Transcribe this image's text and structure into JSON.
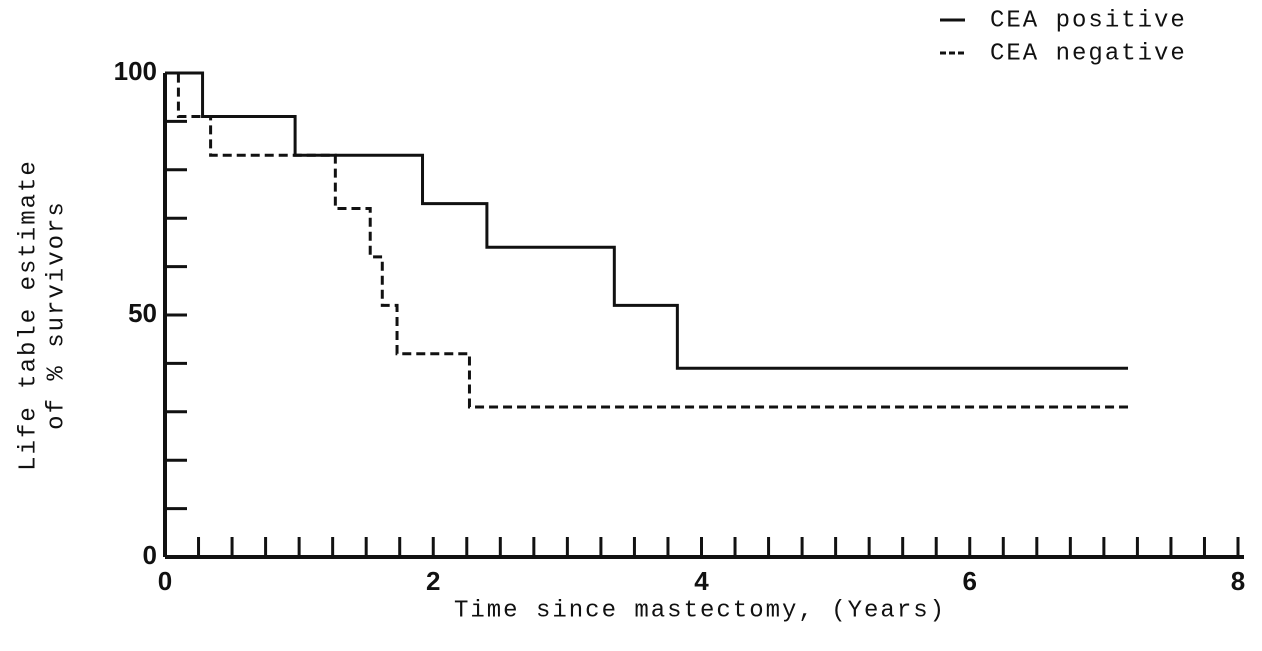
{
  "chart_data": {
    "type": "step",
    "xlabel": "Time since mastectomy, (Years)",
    "ylabel": [
      "Life table estimate",
      "of % survivors"
    ],
    "xlim": [
      0,
      8
    ],
    "ylim": [
      0,
      100
    ],
    "xticks": [
      0,
      2,
      4,
      6,
      8
    ],
    "yticks": [
      0,
      50,
      100
    ],
    "xminorticks": [
      0.25,
      0.5,
      0.75,
      1,
      1.25,
      1.5,
      1.75,
      2,
      2.25,
      2.5,
      2.75,
      3,
      3.25,
      3.5,
      3.75,
      4,
      4.25,
      4.5,
      4.75,
      5,
      5.25,
      5.5,
      5.75,
      6,
      6.25,
      6.5,
      6.75,
      7,
      7.25,
      7.5,
      7.75,
      8
    ],
    "yminorticks": [
      10,
      20,
      30,
      40,
      60,
      70,
      80,
      90
    ],
    "legend": "top-right",
    "series": [
      {
        "name": "CEA positive",
        "color": "#111111",
        "style": "solid",
        "x": [
          0,
          0.28,
          0.97,
          1.92,
          2.4,
          3.35,
          3.82,
          7.18
        ],
        "values": [
          100,
          91,
          83,
          73,
          64,
          52,
          39,
          39
        ]
      },
      {
        "name": "CEA negative",
        "color": "#111111",
        "style": "dashed",
        "x": [
          0,
          0.1,
          0.34,
          1.27,
          1.53,
          1.62,
          1.73,
          2.27,
          7.18
        ],
        "values": [
          100,
          91,
          83,
          72,
          62,
          52,
          42,
          31,
          31
        ]
      }
    ]
  }
}
